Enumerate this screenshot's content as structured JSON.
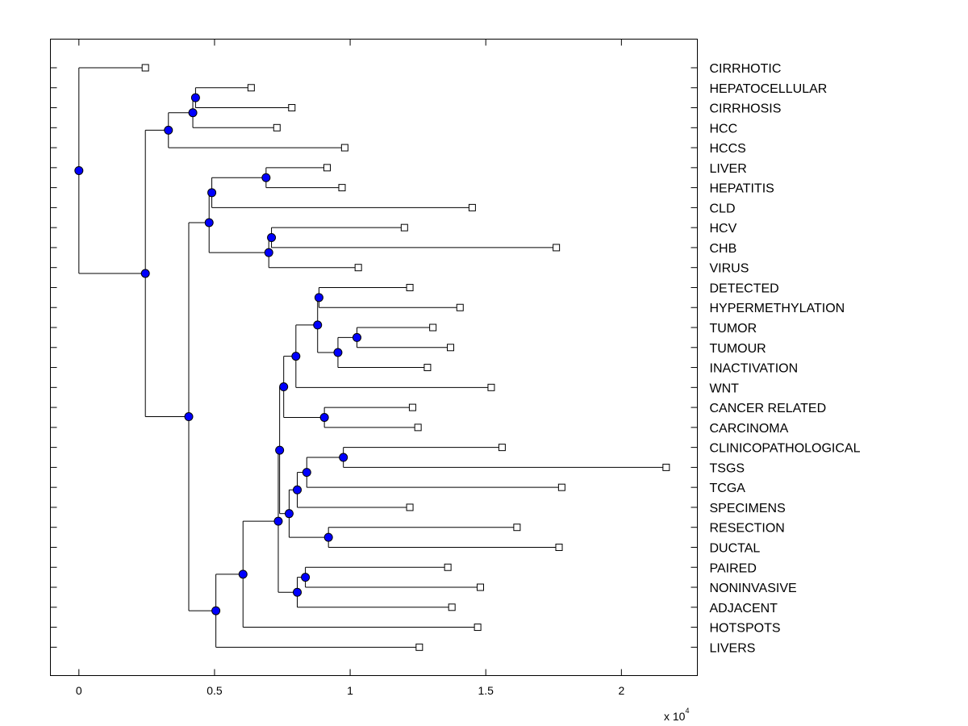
{
  "chart_data": {
    "type": "dendrogram",
    "orientation": "horizontal",
    "x_multiplier_label": {
      "prefix": "x 10",
      "exponent": "4"
    },
    "xlim": [
      -0.105,
      2.28
    ],
    "xticks": [
      0,
      0.5,
      1,
      1.5,
      2
    ],
    "xtick_labels": [
      "0",
      "0.5",
      "1",
      "1.5",
      "2"
    ],
    "colors": {
      "internal_node": "#0000ff",
      "leaf_marker": "#ffffff",
      "line": "#000000"
    },
    "leaves": [
      {
        "label": "CIRRHOTIC",
        "x": 0.245
      },
      {
        "label": "HEPATOCELLULAR",
        "x": 0.635
      },
      {
        "label": "CIRRHOSIS",
        "x": 0.785
      },
      {
        "label": "HCC",
        "x": 0.73
      },
      {
        "label": "HCCS",
        "x": 0.98
      },
      {
        "label": "LIVER",
        "x": 0.915
      },
      {
        "label": "HEPATITIS",
        "x": 0.97
      },
      {
        "label": "CLD",
        "x": 1.45
      },
      {
        "label": "HCV",
        "x": 1.2
      },
      {
        "label": "CHB",
        "x": 1.76
      },
      {
        "label": "VIRUS",
        "x": 1.03
      },
      {
        "label": "DETECTED",
        "x": 1.22
      },
      {
        "label": "HYPERMETHYLATION",
        "x": 1.405
      },
      {
        "label": "TUMOR",
        "x": 1.305
      },
      {
        "label": "TUMOUR",
        "x": 1.37
      },
      {
        "label": "INACTIVATION",
        "x": 1.285
      },
      {
        "label": "WNT",
        "x": 1.52
      },
      {
        "label": "CANCER RELATED",
        "x": 1.23
      },
      {
        "label": "CARCINOMA",
        "x": 1.25
      },
      {
        "label": "CLINICOPATHOLOGICAL",
        "x": 1.56
      },
      {
        "label": "TSGS",
        "x": 2.165
      },
      {
        "label": "TCGA",
        "x": 1.78
      },
      {
        "label": "SPECIMENS",
        "x": 1.22
      },
      {
        "label": "RESECTION",
        "x": 1.615
      },
      {
        "label": "DUCTAL",
        "x": 1.77
      },
      {
        "label": "PAIRED",
        "x": 1.36
      },
      {
        "label": "NONINVASIVE",
        "x": 1.48
      },
      {
        "label": "ADJACENT",
        "x": 1.375
      },
      {
        "label": "HOTSPOTS",
        "x": 1.47
      },
      {
        "label": "LIVERS",
        "x": 1.255
      }
    ],
    "nodes": [
      {
        "id": "n1",
        "x": 0.43,
        "children": [
          "L1",
          "L2"
        ]
      },
      {
        "id": "n2",
        "x": 0.42,
        "children": [
          "n1",
          "L3"
        ]
      },
      {
        "id": "n3",
        "x": 0.33,
        "children": [
          "n2",
          "L4"
        ]
      },
      {
        "id": "n4",
        "x": 0.69,
        "children": [
          "L5",
          "L6"
        ]
      },
      {
        "id": "n5",
        "x": 0.49,
        "children": [
          "n4",
          "L7"
        ]
      },
      {
        "id": "n6",
        "x": 0.71,
        "children": [
          "L8",
          "L9"
        ]
      },
      {
        "id": "n7",
        "x": 0.7,
        "children": [
          "n6",
          "L10"
        ]
      },
      {
        "id": "n8",
        "x": 0.48,
        "children": [
          "n5",
          "n7"
        ]
      },
      {
        "id": "n9",
        "x": 0.885,
        "children": [
          "L11",
          "L12"
        ]
      },
      {
        "id": "n10",
        "x": 1.025,
        "children": [
          "L13",
          "L14"
        ]
      },
      {
        "id": "n11",
        "x": 0.955,
        "children": [
          "n10",
          "L15"
        ]
      },
      {
        "id": "n12",
        "x": 0.88,
        "children": [
          "n9",
          "n11"
        ]
      },
      {
        "id": "n13",
        "x": 0.8,
        "children": [
          "n12",
          "L16"
        ]
      },
      {
        "id": "n14",
        "x": 0.905,
        "children": [
          "L17",
          "L18"
        ]
      },
      {
        "id": "n15",
        "x": 0.755,
        "children": [
          "n13",
          "n14"
        ]
      },
      {
        "id": "n16",
        "x": 0.975,
        "children": [
          "L19",
          "L20"
        ]
      },
      {
        "id": "n17",
        "x": 0.84,
        "children": [
          "n16",
          "L21"
        ]
      },
      {
        "id": "n18",
        "x": 0.805,
        "children": [
          "n17",
          "L22"
        ]
      },
      {
        "id": "n19",
        "x": 0.92,
        "children": [
          "L23",
          "L24"
        ]
      },
      {
        "id": "n20",
        "x": 0.775,
        "children": [
          "n18",
          "n19"
        ]
      },
      {
        "id": "n21",
        "x": 0.74,
        "children": [
          "n15",
          "n20"
        ]
      },
      {
        "id": "n22",
        "x": 0.835,
        "children": [
          "L25",
          "L26"
        ]
      },
      {
        "id": "n23",
        "x": 0.805,
        "children": [
          "n22",
          "L27"
        ]
      },
      {
        "id": "n24",
        "x": 0.735,
        "children": [
          "n21",
          "n23"
        ]
      },
      {
        "id": "n25",
        "x": 0.605,
        "children": [
          "n24",
          "L28"
        ]
      },
      {
        "id": "n26",
        "x": 0.505,
        "children": [
          "n25",
          "L29"
        ]
      },
      {
        "id": "n27",
        "x": 0.405,
        "children": [
          "n8",
          "n26"
        ]
      },
      {
        "id": "n28",
        "x": 0.245,
        "children": [
          "n3",
          "n27"
        ]
      },
      {
        "id": "n29",
        "x": 0.0,
        "children": [
          "n28",
          "L0"
        ]
      }
    ]
  }
}
